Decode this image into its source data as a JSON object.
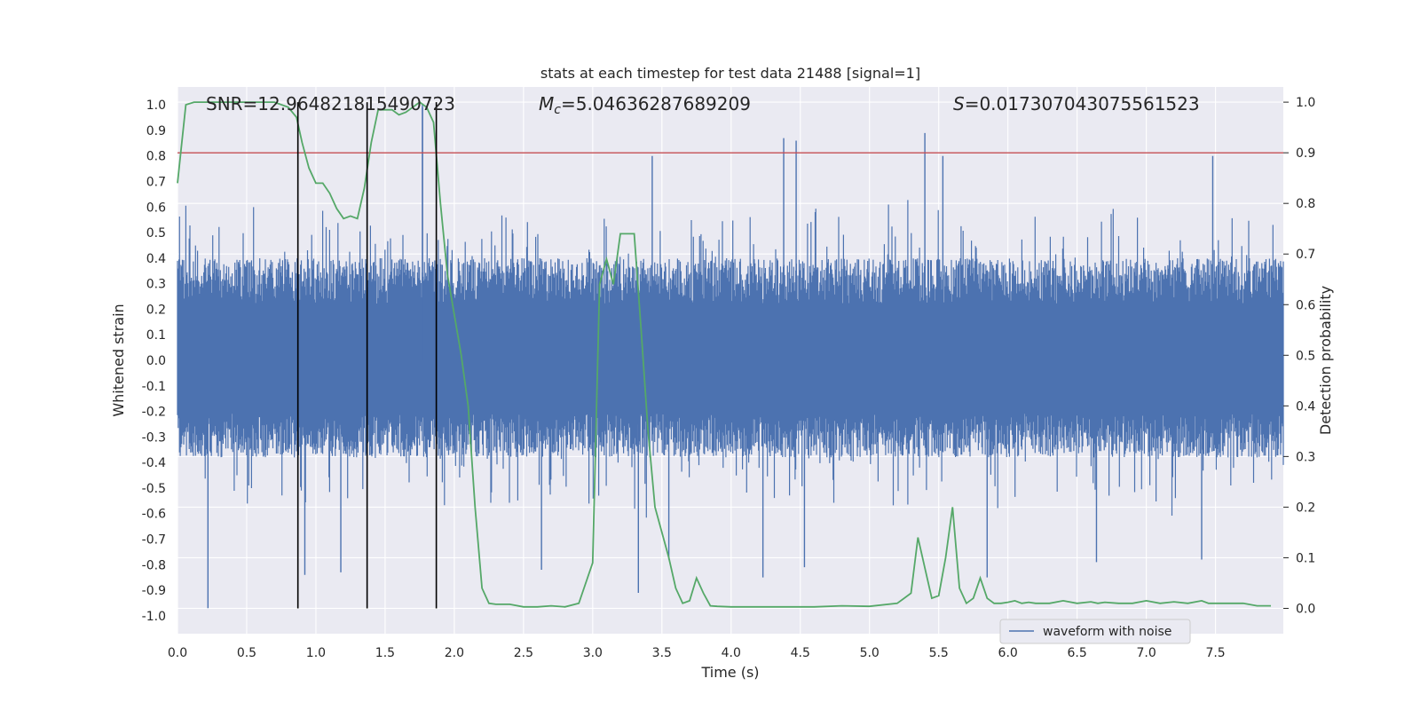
{
  "chart_data": {
    "type": "line",
    "title": "stats at each timestep for test data 21488 [signal=1]",
    "xlabel": "Time (s)",
    "ylabel_left": "Whitened strain",
    "ylabel_right": "Detection probability",
    "xlim": [
      0.0,
      7.99
    ],
    "ylim_left": [
      -1.07,
      1.07
    ],
    "ylim_right": [
      -0.05,
      1.03
    ],
    "xticks": [
      "0.0",
      "0.5",
      "1.0",
      "1.5",
      "2.0",
      "2.5",
      "3.0",
      "3.5",
      "4.0",
      "4.5",
      "5.0",
      "5.5",
      "6.0",
      "6.5",
      "7.0",
      "7.5"
    ],
    "yticks_left": [
      "1.0",
      "0.9",
      "0.8",
      "0.7",
      "0.6",
      "0.5",
      "0.4",
      "0.3",
      "0.2",
      "0.1",
      "0.0",
      "-0.1",
      "-0.2",
      "-0.3",
      "-0.4",
      "-0.5",
      "-0.6",
      "-0.7",
      "-0.8",
      "-0.9",
      "-1.0"
    ],
    "yticks_right": [
      "1.0",
      "0.9",
      "0.8",
      "0.7",
      "0.6",
      "0.5",
      "0.4",
      "0.3",
      "0.2",
      "0.1",
      "0.0"
    ],
    "annotations": {
      "snr": "SNR=12.964821815490723",
      "mc_symbol": "M",
      "mc_sub": "c",
      "mc_value": "=5.04636287689209",
      "s_symbol": "S",
      "s_value": "=0.017307043075561523"
    },
    "legend": {
      "label": "waveform with noise",
      "position": "lower-right"
    },
    "threshold": {
      "value": 0.9,
      "axis": "right",
      "color": "#c44e52"
    },
    "vlines": [
      0.87,
      1.37,
      1.87
    ],
    "waveform": {
      "name": "waveform with noise",
      "color": "#4c72b0",
      "sample_count": 1600,
      "typical_range": [
        -0.38,
        0.4
      ],
      "peaks": [
        [
          0.22,
          -0.97
        ],
        [
          0.92,
          -0.84
        ],
        [
          1.18,
          -0.83
        ],
        [
          1.77,
          1.0
        ],
        [
          1.77,
          0.99
        ],
        [
          2.63,
          -0.82
        ],
        [
          3.33,
          -0.91
        ],
        [
          3.43,
          0.8
        ],
        [
          3.55,
          -0.78
        ],
        [
          4.23,
          -0.85
        ],
        [
          4.38,
          0.87
        ],
        [
          4.47,
          0.86
        ],
        [
          4.53,
          -0.81
        ],
        [
          5.4,
          0.89
        ],
        [
          5.53,
          0.8
        ],
        [
          5.85,
          -0.85
        ],
        [
          6.64,
          -0.79
        ],
        [
          7.48,
          0.8
        ],
        [
          7.4,
          -0.78
        ]
      ]
    },
    "probability": {
      "name": "detection probability",
      "color": "#55a868",
      "x": [
        0.0,
        0.06,
        0.12,
        0.3,
        0.5,
        0.7,
        0.8,
        0.86,
        0.9,
        0.95,
        1.0,
        1.05,
        1.1,
        1.15,
        1.2,
        1.25,
        1.3,
        1.35,
        1.4,
        1.45,
        1.5,
        1.55,
        1.6,
        1.65,
        1.7,
        1.75,
        1.8,
        1.85,
        1.9,
        1.95,
        2.0,
        2.05,
        2.1,
        2.15,
        2.2,
        2.25,
        2.3,
        2.4,
        2.5,
        2.6,
        2.7,
        2.8,
        2.9,
        3.0,
        3.05,
        3.1,
        3.15,
        3.2,
        3.25,
        3.3,
        3.35,
        3.4,
        3.45,
        3.5,
        3.55,
        3.6,
        3.65,
        3.7,
        3.75,
        3.8,
        3.85,
        3.9,
        4.0,
        4.2,
        4.4,
        4.6,
        4.8,
        5.0,
        5.2,
        5.3,
        5.35,
        5.4,
        5.45,
        5.5,
        5.55,
        5.6,
        5.65,
        5.7,
        5.75,
        5.8,
        5.85,
        5.9,
        5.95,
        6.0,
        6.05,
        6.1,
        6.15,
        6.2,
        6.3,
        6.4,
        6.5,
        6.6,
        6.65,
        6.7,
        6.8,
        6.9,
        7.0,
        7.1,
        7.2,
        7.3,
        7.4,
        7.45,
        7.5,
        7.6,
        7.7,
        7.8,
        7.9
      ],
      "y": [
        0.84,
        0.995,
        1.0,
        1.0,
        1.0,
        1.0,
        0.99,
        0.97,
        0.92,
        0.87,
        0.84,
        0.84,
        0.82,
        0.79,
        0.77,
        0.775,
        0.77,
        0.83,
        0.92,
        0.985,
        0.985,
        0.985,
        0.975,
        0.98,
        0.99,
        1.0,
        0.99,
        0.96,
        0.8,
        0.66,
        0.58,
        0.5,
        0.4,
        0.2,
        0.04,
        0.01,
        0.008,
        0.008,
        0.003,
        0.003,
        0.005,
        0.003,
        0.01,
        0.09,
        0.64,
        0.69,
        0.64,
        0.74,
        0.74,
        0.74,
        0.55,
        0.35,
        0.2,
        0.15,
        0.1,
        0.04,
        0.01,
        0.015,
        0.06,
        0.03,
        0.005,
        0.004,
        0.003,
        0.003,
        0.003,
        0.003,
        0.005,
        0.004,
        0.01,
        0.03,
        0.14,
        0.08,
        0.02,
        0.025,
        0.1,
        0.2,
        0.04,
        0.01,
        0.02,
        0.06,
        0.02,
        0.01,
        0.01,
        0.012,
        0.015,
        0.01,
        0.012,
        0.01,
        0.01,
        0.015,
        0.01,
        0.013,
        0.01,
        0.012,
        0.01,
        0.01,
        0.015,
        0.01,
        0.013,
        0.01,
        0.015,
        0.01,
        0.01,
        0.01,
        0.01,
        0.005,
        0.005
      ]
    }
  }
}
